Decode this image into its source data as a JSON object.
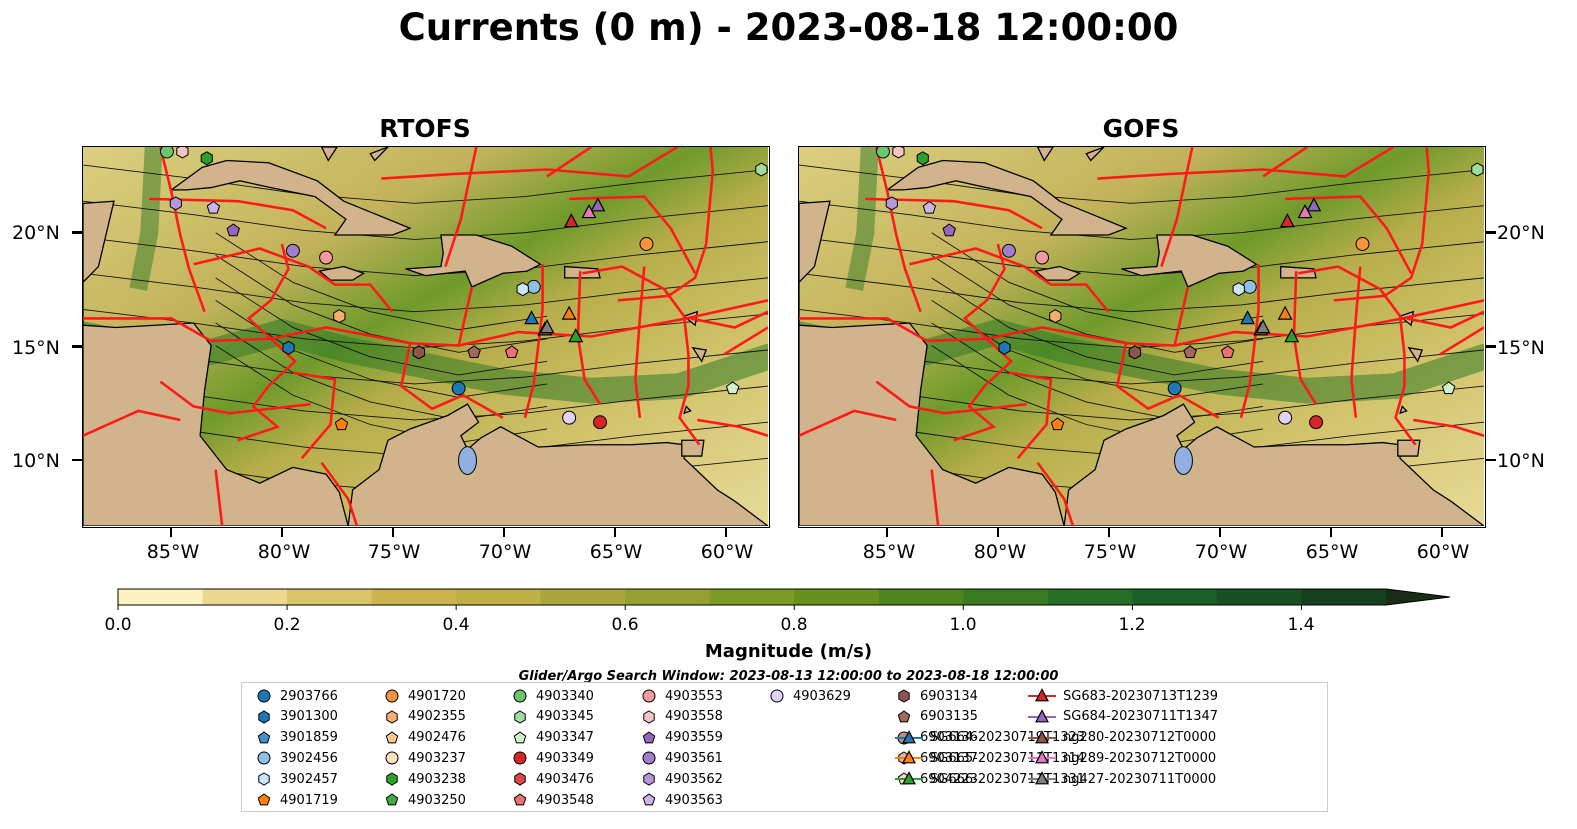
{
  "title": "Currents (0 m) - 2023-08-18 12:00:00",
  "panels": [
    {
      "title": "RTOFS"
    },
    {
      "title": "GOFS"
    }
  ],
  "lat_labels": [
    "20°N",
    "15°N",
    "10°N"
  ],
  "lon_labels": [
    "85°W",
    "80°W",
    "75°W",
    "70°W",
    "65°W",
    "60°W"
  ],
  "map_extent": {
    "lon_min": -89,
    "lon_max": -58,
    "lat_min": 7,
    "lat_max": 23.8
  },
  "colorbar": {
    "label": "Magnitude (m/s)",
    "ticks": [
      "0.0",
      "0.2",
      "0.4",
      "0.6",
      "0.8",
      "1.0",
      "1.2",
      "1.4"
    ],
    "range": [
      0,
      1.5
    ],
    "extend": "max",
    "colormap": "speed",
    "colors": [
      "#fdf3c0",
      "#ecd98f",
      "#dbc56a",
      "#cdb44e",
      "#bfb043",
      "#aaa63a",
      "#95a02e",
      "#7d9a22",
      "#67901d",
      "#4f851d",
      "#3a7a20",
      "#256e24",
      "#1a5f25",
      "#164f22",
      "#16401d",
      "#1a2e17"
    ]
  },
  "search_window": "Glider/Argo Search Window: 2023-08-13 12:00:00 to 2023-08-18 12:00:00",
  "legend": [
    {
      "label": "2903766",
      "marker": "circle",
      "color": "#1f77b4"
    },
    {
      "label": "3901300",
      "marker": "hexagon",
      "color": "#1f77b4"
    },
    {
      "label": "3901859",
      "marker": "pentagon",
      "color": "#4a90c8"
    },
    {
      "label": "3902456",
      "marker": "circle",
      "color": "#8fc1e8"
    },
    {
      "label": "3902457",
      "marker": "hexagon",
      "color": "#cde6f7"
    },
    {
      "label": "4901719",
      "marker": "pentagon",
      "color": "#ff7f0e"
    },
    {
      "label": "4901720",
      "marker": "circle",
      "color": "#f5943a"
    },
    {
      "label": "4902355",
      "marker": "hexagon",
      "color": "#f9ad6b"
    },
    {
      "label": "4902476",
      "marker": "pentagon",
      "color": "#fbc691"
    },
    {
      "label": "4903237",
      "marker": "circle",
      "color": "#fde0c2"
    },
    {
      "label": "4903238",
      "marker": "hexagon",
      "color": "#2ca02c"
    },
    {
      "label": "4903250",
      "marker": "pentagon",
      "color": "#3fae3f"
    },
    {
      "label": "4903340",
      "marker": "circle",
      "color": "#6cc66c"
    },
    {
      "label": "4903345",
      "marker": "hexagon",
      "color": "#a2dc9b"
    },
    {
      "label": "4903347",
      "marker": "pentagon",
      "color": "#d2f0cb"
    },
    {
      "label": "4903349",
      "marker": "circle",
      "color": "#d62728"
    },
    {
      "label": "4903476",
      "marker": "hexagon",
      "color": "#e0474a"
    },
    {
      "label": "4903548",
      "marker": "pentagon",
      "color": "#ed7075"
    },
    {
      "label": "4903553",
      "marker": "circle",
      "color": "#f49a9c"
    },
    {
      "label": "4903558",
      "marker": "hexagon",
      "color": "#f9c4c4"
    },
    {
      "label": "4903559",
      "marker": "pentagon",
      "color": "#9467bd"
    },
    {
      "label": "4903561",
      "marker": "circle",
      "color": "#a27fcc"
    },
    {
      "label": "4903562",
      "marker": "hexagon",
      "color": "#b595dc"
    },
    {
      "label": "4903563",
      "marker": "pentagon",
      "color": "#cdb3ea"
    },
    {
      "label": "4903629",
      "marker": "circle",
      "color": "#e2d2f5"
    },
    {
      "label": "6903134",
      "marker": "hexagon",
      "color": "#8c564b"
    },
    {
      "label": "6903135",
      "marker": "pentagon",
      "color": "#a0685d"
    },
    {
      "label": "6903136",
      "marker": "circle",
      "color": "#c28c7c"
    },
    {
      "label": "6903137",
      "marker": "hexagon",
      "color": "#e0b29f"
    },
    {
      "label": "6904223",
      "marker": "pentagon",
      "color": "#f8d7c8"
    },
    {
      "label": "SG664-20230719T1323",
      "marker": "triangle-line",
      "color": "#1f77b4"
    },
    {
      "label": "SG665-20230711T1314",
      "marker": "triangle-line",
      "color": "#ff7f0e"
    },
    {
      "label": "SG666-20230711T1331",
      "marker": "triangle-line",
      "color": "#2ca02c"
    },
    {
      "label": "SG683-20230713T1239",
      "marker": "triangle-line",
      "color": "#d62728"
    },
    {
      "label": "SG684-20230711T1347",
      "marker": "triangle-line",
      "color": "#9467bd"
    },
    {
      "label": "ng280-20230712T0000",
      "marker": "triangle-line",
      "color": "#8c564b"
    },
    {
      "label": "ng289-20230712T0000",
      "marker": "triangle-line",
      "color": "#e377c2"
    },
    {
      "label": "ng427-20230711T0000",
      "marker": "triangle-line",
      "color": "#7f7f7f"
    }
  ],
  "observations": [
    {
      "id": "2903766",
      "lon": -72,
      "lat": 13.1
    },
    {
      "id": "3901300",
      "lon": -79.7,
      "lat": 14.9
    },
    {
      "id": "3902456",
      "lon": -68.6,
      "lat": 17.6
    },
    {
      "id": "3902457",
      "lon": -69.1,
      "lat": 17.5
    },
    {
      "id": "4901720",
      "lon": -63.5,
      "lat": 19.5
    },
    {
      "id": "4902355",
      "lon": -77.4,
      "lat": 16.3
    },
    {
      "id": "4903340",
      "lon": -85.2,
      "lat": 23.6
    },
    {
      "id": "4903238",
      "lon": -83.4,
      "lat": 23.3
    },
    {
      "id": "4903345",
      "lon": -58.3,
      "lat": 22.8
    },
    {
      "id": "4903347",
      "lon": -59.6,
      "lat": 13.1
    },
    {
      "id": "4903349",
      "lon": -65.6,
      "lat": 11.6
    },
    {
      "id": "4903476",
      "lon": -73.8,
      "lat": 14.7
    },
    {
      "id": "4903548",
      "lon": -69.6,
      "lat": 14.7
    },
    {
      "id": "4903553",
      "lon": -78,
      "lat": 18.9
    },
    {
      "id": "4903558",
      "lon": -84.5,
      "lat": 23.6
    },
    {
      "id": "4903559",
      "lon": -82.2,
      "lat": 20.1
    },
    {
      "id": "4903561",
      "lon": -79.5,
      "lat": 19.2
    },
    {
      "id": "4903562",
      "lon": -84.8,
      "lat": 21.3
    },
    {
      "id": "4903563",
      "lon": -83.1,
      "lat": 21.1
    },
    {
      "id": "4903629",
      "lon": -67,
      "lat": 11.8
    },
    {
      "id": "6903134",
      "lon": -73.8,
      "lat": 14.7
    },
    {
      "id": "6903135",
      "lon": -71.3,
      "lat": 14.7
    },
    {
      "id": "4901719",
      "lon": -77.3,
      "lat": 11.5
    },
    {
      "id": "SG664-20230719T1323",
      "lon": -68.7,
      "lat": 16.2
    },
    {
      "id": "SG665-20230711T1314",
      "lon": -67.0,
      "lat": 16.4
    },
    {
      "id": "SG666-20230711T1331",
      "lon": -66.7,
      "lat": 15.4
    },
    {
      "id": "SG683-20230713T1239",
      "lon": -66.9,
      "lat": 20.5
    },
    {
      "id": "SG684-20230711T1347",
      "lon": -65.7,
      "lat": 21.2
    },
    {
      "id": "ng280-20230712T0000",
      "lon": -68.1,
      "lat": 15.7
    },
    {
      "id": "ng289-20230712T0000",
      "lon": -66.1,
      "lat": 20.9
    },
    {
      "id": "ng427-20230711T0000",
      "lon": -68.0,
      "lat": 15.8
    }
  ]
}
